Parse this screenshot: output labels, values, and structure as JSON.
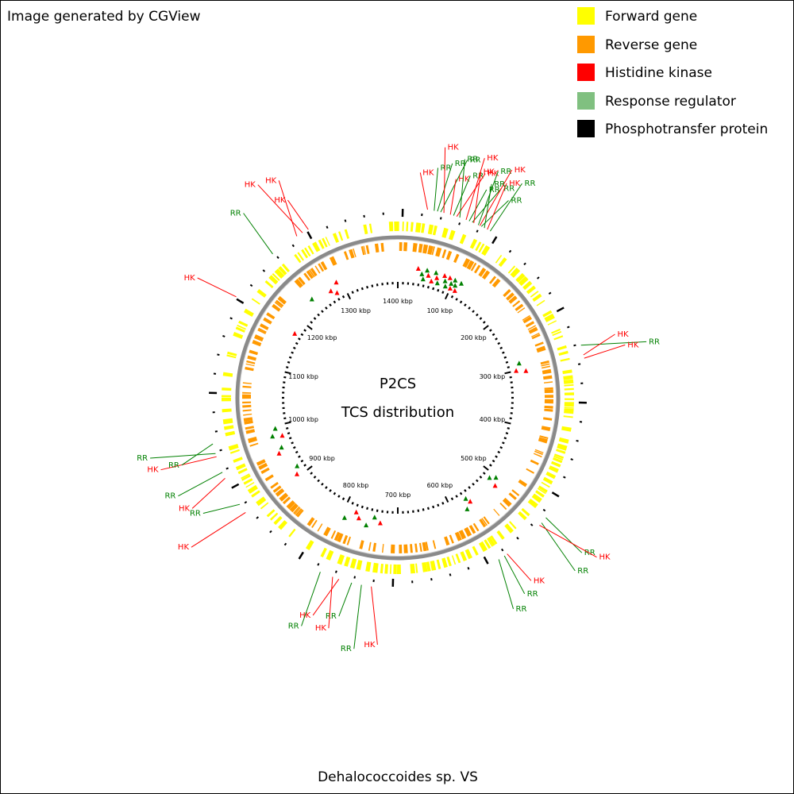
{
  "credit": "Image generated by CGView",
  "legend": [
    {
      "label": "Forward gene",
      "color": "#ffff00"
    },
    {
      "label": "Reverse gene",
      "color": "#ff9900"
    },
    {
      "label": "Histidine kinase",
      "color": "#ff0000"
    },
    {
      "label": "Response regulator",
      "color": "#80c080"
    },
    {
      "label": "Phosphotransfer protein",
      "color": "#000000"
    }
  ],
  "map": {
    "title": "P2CS",
    "subtitle": "TCS distribution",
    "footer": "Dehalococcoides sp. VS",
    "tick_labels": [
      "100 kbp",
      "200 kbp",
      "300 kbp",
      "400 kbp",
      "500 kbp",
      "600 kbp",
      "700 kbp",
      "800 kbp",
      "900 kbp",
      "1000 kbp",
      "1100 kbp",
      "1200 kbp",
      "1300 kbp",
      "1400 kbp"
    ],
    "marker_colors": {
      "histidine_kinase": "#ff0000",
      "response_regulator": "#008000"
    },
    "callouts": [
      {
        "label": "HK",
        "type": "histidine_kinase"
      },
      {
        "label": "RR",
        "type": "response_regulator"
      },
      {
        "label": "RR",
        "type": "response_regulator"
      },
      {
        "label": "RR",
        "type": "response_regulator"
      },
      {
        "label": "HK",
        "type": "histidine_kinase"
      },
      {
        "label": "HK",
        "type": "histidine_kinase"
      },
      {
        "label": "RR",
        "type": "response_regulator"
      },
      {
        "label": "HK",
        "type": "histidine_kinase"
      },
      {
        "label": "RR",
        "type": "response_regulator"
      },
      {
        "label": "HK",
        "type": "histidine_kinase"
      },
      {
        "label": "RR",
        "type": "response_regulator"
      },
      {
        "label": "RR",
        "type": "response_regulator"
      },
      {
        "label": "HK",
        "type": "histidine_kinase"
      },
      {
        "label": "RR",
        "type": "response_regulator"
      },
      {
        "label": "HK",
        "type": "histidine_kinase"
      },
      {
        "label": "RR",
        "type": "response_regulator"
      },
      {
        "label": "RR",
        "type": "response_regulator"
      },
      {
        "label": "HK",
        "type": "histidine_kinase"
      },
      {
        "label": "RR",
        "type": "response_regulator"
      },
      {
        "label": "RR",
        "type": "response_regulator"
      },
      {
        "label": "HK",
        "type": "histidine_kinase"
      },
      {
        "label": "HK",
        "type": "histidine_kinase"
      },
      {
        "label": "RR",
        "type": "response_regulator"
      },
      {
        "label": "RR",
        "type": "response_regulator"
      },
      {
        "label": "HK",
        "type": "histidine_kinase"
      },
      {
        "label": "HK",
        "type": "histidine_kinase"
      },
      {
        "label": "RR",
        "type": "response_regulator"
      },
      {
        "label": "RR",
        "type": "response_regulator"
      },
      {
        "label": "HK",
        "type": "histidine_kinase"
      },
      {
        "label": "RR",
        "type": "response_regulator"
      },
      {
        "label": "RR",
        "type": "response_regulator"
      },
      {
        "label": "HK",
        "type": "histidine_kinase"
      },
      {
        "label": "HK",
        "type": "histidine_kinase"
      },
      {
        "label": "RR",
        "type": "response_regulator"
      },
      {
        "label": "HK",
        "type": "histidine_kinase"
      },
      {
        "label": "RR",
        "type": "response_regulator"
      },
      {
        "label": "HK",
        "type": "histidine_kinase"
      },
      {
        "label": "RR",
        "type": "response_regulator"
      },
      {
        "label": "HK",
        "type": "histidine_kinase"
      },
      {
        "label": "RR",
        "type": "response_regulator"
      },
      {
        "label": "RR",
        "type": "response_regulator"
      },
      {
        "label": "HK",
        "type": "histidine_kinase"
      },
      {
        "label": "RR",
        "type": "response_regulator"
      },
      {
        "label": "HK",
        "type": "histidine_kinase"
      },
      {
        "label": "HK",
        "type": "histidine_kinase"
      },
      {
        "label": "HK",
        "type": "histidine_kinase"
      }
    ]
  }
}
